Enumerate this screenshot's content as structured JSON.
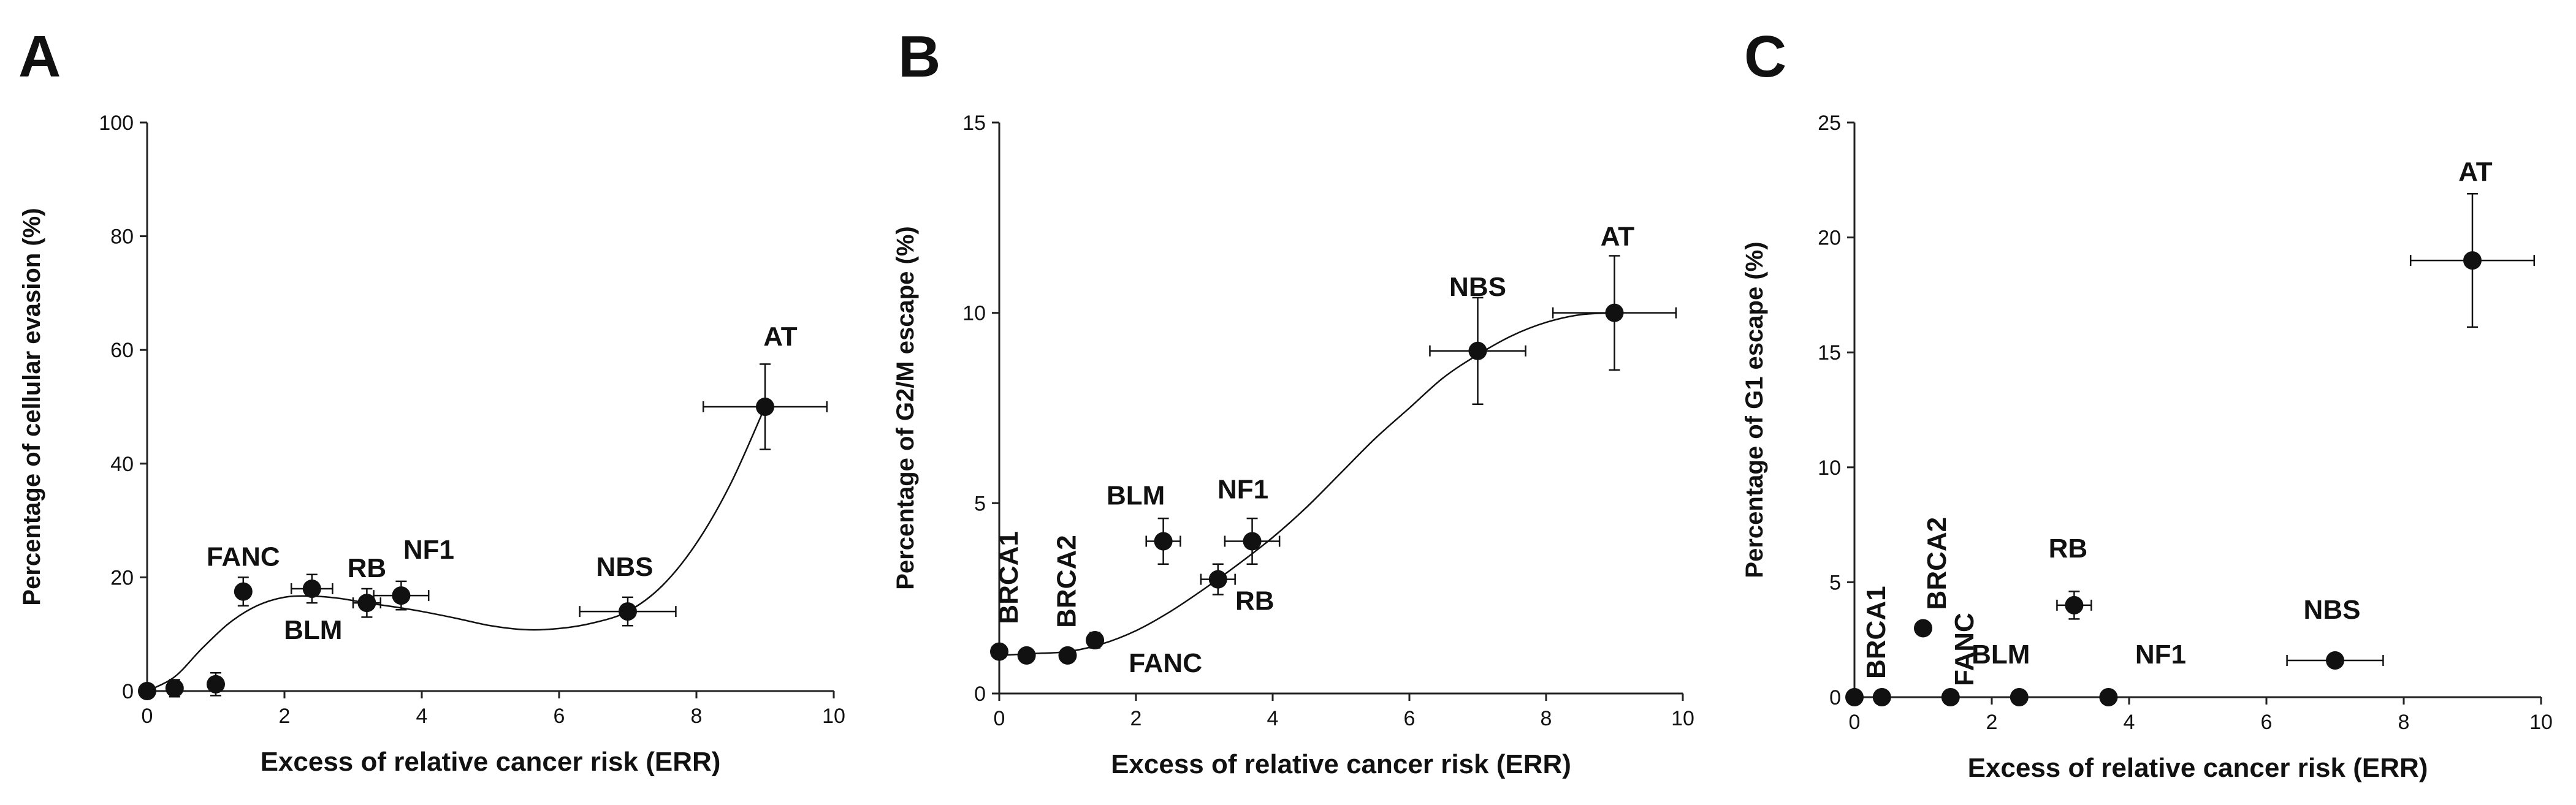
{
  "colors": {
    "marker": "#111111",
    "axis": "#222222",
    "background": "#ffffff"
  },
  "chart_data": [
    {
      "type": "scatter",
      "panel": "A",
      "title": "",
      "xlabel": "Excess of relative cancer risk (ERR)",
      "ylabel": "Percentage of cellular evasion (%)",
      "xlim": [
        0,
        10
      ],
      "ylim": [
        0,
        100
      ],
      "xticks": [
        0,
        2,
        4,
        6,
        8,
        10
      ],
      "yticks": [
        0,
        20,
        40,
        60,
        80,
        100
      ],
      "fit_curve": true,
      "points": [
        {
          "label": "",
          "x": 0,
          "y": 0,
          "xerr": 0,
          "yerr": 0
        },
        {
          "label": "",
          "x": 0.4,
          "y": 0.5,
          "xerr": 0,
          "yerr": 1.5
        },
        {
          "label": "",
          "x": 1.0,
          "y": 1.2,
          "xerr": 0,
          "yerr": 2
        },
        {
          "label": "FANC",
          "x": 1.4,
          "y": 17.5,
          "xerr": 0,
          "yerr": 2.5
        },
        {
          "label": "BLM",
          "x": 2.4,
          "y": 18,
          "xerr": 0.3,
          "yerr": 2.5
        },
        {
          "label": "RB",
          "x": 3.2,
          "y": 15.5,
          "xerr": 0.2,
          "yerr": 2.5
        },
        {
          "label": "NF1",
          "x": 3.7,
          "y": 16.8,
          "xerr": 0.4,
          "yerr": 2.5
        },
        {
          "label": "NBS",
          "x": 7.0,
          "y": 14,
          "xerr": 0.7,
          "yerr": 2.5
        },
        {
          "label": "AT",
          "x": 9.0,
          "y": 50,
          "xerr": 0.9,
          "yerr": 7.5
        }
      ],
      "curve": {
        "x": [
          0,
          0.4,
          0.8,
          1.2,
          1.6,
          2.0,
          2.4,
          2.8,
          3.2,
          3.6,
          4.0,
          4.5,
          5.0,
          5.5,
          6.0,
          6.5,
          7.0,
          7.5,
          8.0,
          8.5,
          9.0
        ],
        "y": [
          0,
          2.5,
          7.5,
          12,
          15,
          16.5,
          16.7,
          16.3,
          15.5,
          14.8,
          14,
          12.8,
          11.5,
          10.8,
          11,
          12,
          14,
          18.5,
          26,
          36.5,
          50
        ]
      }
    },
    {
      "type": "scatter",
      "panel": "B",
      "title": "",
      "xlabel": "Excess of relative cancer risk (ERR)",
      "ylabel": "Percentage of G2/M escape (%)",
      "xlim": [
        0,
        10
      ],
      "ylim": [
        0,
        15
      ],
      "xticks": [
        0,
        2,
        4,
        6,
        8,
        10
      ],
      "yticks": [
        0,
        5,
        10,
        15
      ],
      "fit_curve": true,
      "points": [
        {
          "label": "BRCA1",
          "x": 0,
          "y": 1.1,
          "xerr": 0,
          "yerr": 0
        },
        {
          "label": "BRCA2",
          "x": 0.4,
          "y": 1.0,
          "xerr": 0,
          "yerr": 0
        },
        {
          "label": "",
          "x": 1.0,
          "y": 1.0,
          "xerr": 0,
          "yerr": 0
        },
        {
          "label": "FANC",
          "x": 1.4,
          "y": 1.4,
          "xerr": 0,
          "yerr": 0.2
        },
        {
          "label": "BLM",
          "x": 2.4,
          "y": 4.0,
          "xerr": 0.25,
          "yerr": 0.6
        },
        {
          "label": "RB",
          "x": 3.2,
          "y": 3.0,
          "xerr": 0.25,
          "yerr": 0.4
        },
        {
          "label": "NF1",
          "x": 3.7,
          "y": 4.0,
          "xerr": 0.4,
          "yerr": 0.6
        },
        {
          "label": "NBS",
          "x": 7.0,
          "y": 9.0,
          "xerr": 0.7,
          "yerr": 1.4
        },
        {
          "label": "AT",
          "x": 9.0,
          "y": 10.0,
          "xerr": 0.9,
          "yerr": 1.5
        }
      ],
      "curve": {
        "x": [
          0,
          0.5,
          1.0,
          1.5,
          2.0,
          2.5,
          3.0,
          3.5,
          4.0,
          4.5,
          5.0,
          5.5,
          6.0,
          6.5,
          7.0,
          7.5,
          8.0,
          8.5,
          9.0
        ],
        "y": [
          1.0,
          1.05,
          1.1,
          1.3,
          1.65,
          2.15,
          2.75,
          3.4,
          4.1,
          4.9,
          5.8,
          6.7,
          7.5,
          8.3,
          8.9,
          9.4,
          9.75,
          9.95,
          10.0
        ]
      }
    },
    {
      "type": "scatter",
      "panel": "C",
      "title": "",
      "xlabel": "Excess of relative cancer risk (ERR)",
      "ylabel": "Percentage of G1 escape (%)",
      "xlim": [
        0,
        10
      ],
      "ylim": [
        0,
        25
      ],
      "xticks": [
        0,
        2,
        4,
        6,
        8,
        10
      ],
      "yticks": [
        0,
        5,
        10,
        15,
        20,
        25
      ],
      "fit_curve": false,
      "points": [
        {
          "label": "BRCA1",
          "x": 0,
          "y": 0,
          "xerr": 0,
          "yerr": 0
        },
        {
          "label": "",
          "x": 0.4,
          "y": 0,
          "xerr": 0,
          "yerr": 0
        },
        {
          "label": "BRCA2",
          "x": 1.0,
          "y": 3.0,
          "xerr": 0,
          "yerr": 0
        },
        {
          "label": "FANC",
          "x": 1.4,
          "y": 0,
          "xerr": 0,
          "yerr": 0
        },
        {
          "label": "BLM",
          "x": 2.4,
          "y": 0,
          "xerr": 0,
          "yerr": 0
        },
        {
          "label": "RB",
          "x": 3.2,
          "y": 4.0,
          "xerr": 0.25,
          "yerr": 0.6
        },
        {
          "label": "NF1",
          "x": 3.7,
          "y": 0,
          "xerr": 0,
          "yerr": 0
        },
        {
          "label": "NBS",
          "x": 7.0,
          "y": 1.6,
          "xerr": 0.7,
          "yerr": 0
        },
        {
          "label": "AT",
          "x": 9.0,
          "y": 19.0,
          "xerr": 0.9,
          "yerr": 2.9
        }
      ]
    }
  ]
}
